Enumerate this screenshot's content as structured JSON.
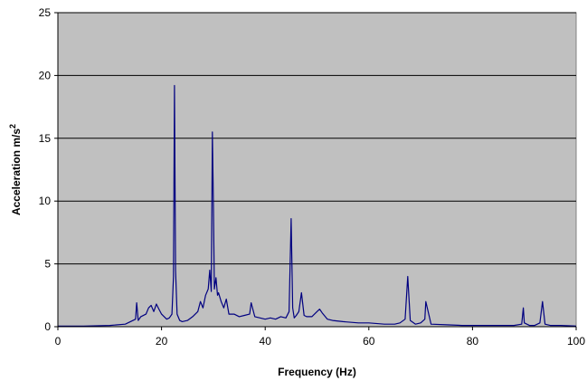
{
  "chart_data": {
    "type": "line",
    "title": "",
    "xlabel": "Frequency (Hz)",
    "ylabel": "Acceleration m/s",
    "ylabel_superscript": "2",
    "xlim": [
      0,
      100
    ],
    "ylim": [
      0,
      25
    ],
    "x_ticks": [
      0,
      20,
      40,
      60,
      80,
      100
    ],
    "y_ticks": [
      0,
      5,
      10,
      15,
      20,
      25
    ],
    "grid": "horizontal",
    "plot_background": "#c0c0c0",
    "series": [
      {
        "color": "#000080",
        "x": [
          0,
          5,
          10,
          13,
          14,
          15,
          15.2,
          15.5,
          16,
          17,
          17.5,
          18,
          18.5,
          19,
          19.5,
          20,
          20.5,
          21,
          21.5,
          22,
          22.3,
          22.5,
          22.7,
          23,
          23.5,
          24,
          25,
          26,
          27,
          27.5,
          28,
          28.5,
          29,
          29.3,
          29.6,
          29.8,
          30,
          30.2,
          30.5,
          30.8,
          31,
          31.5,
          32,
          32.5,
          33,
          34,
          35,
          36,
          37,
          37.3,
          38,
          39,
          40,
          41,
          42,
          43,
          44,
          44.6,
          45,
          45.3,
          45.6,
          46,
          46.5,
          47,
          47.5,
          48,
          49,
          50,
          50.5,
          51,
          52,
          53,
          55,
          58,
          60,
          63,
          65,
          66,
          67,
          67.5,
          68,
          69,
          70,
          70.8,
          71,
          72,
          75,
          78,
          80,
          85,
          88,
          89.5,
          89.8,
          90,
          91,
          92,
          93,
          93.5,
          94,
          95,
          97,
          100
        ],
        "y": [
          0.05,
          0.05,
          0.1,
          0.2,
          0.4,
          0.6,
          1.9,
          0.5,
          0.8,
          1.0,
          1.5,
          1.7,
          1.2,
          1.8,
          1.4,
          1.0,
          0.8,
          0.6,
          0.7,
          1.0,
          4.0,
          19.2,
          4.5,
          1.0,
          0.5,
          0.4,
          0.5,
          0.8,
          1.2,
          2.0,
          1.5,
          2.5,
          3.0,
          4.5,
          2.8,
          15.5,
          10.0,
          3.0,
          3.9,
          2.5,
          2.7,
          2.0,
          1.5,
          2.2,
          1.0,
          1.0,
          0.8,
          0.9,
          1.0,
          1.9,
          0.8,
          0.7,
          0.6,
          0.7,
          0.6,
          0.8,
          0.7,
          1.2,
          8.6,
          1.5,
          0.7,
          0.9,
          1.2,
          2.7,
          0.9,
          0.8,
          0.8,
          1.2,
          1.4,
          1.1,
          0.6,
          0.5,
          0.4,
          0.3,
          0.3,
          0.2,
          0.2,
          0.3,
          0.6,
          4.0,
          0.5,
          0.2,
          0.3,
          0.6,
          2.0,
          0.2,
          0.15,
          0.1,
          0.1,
          0.1,
          0.1,
          0.2,
          1.5,
          0.3,
          0.1,
          0.1,
          0.3,
          2.0,
          0.2,
          0.1,
          0.1,
          0.05
        ]
      }
    ]
  }
}
